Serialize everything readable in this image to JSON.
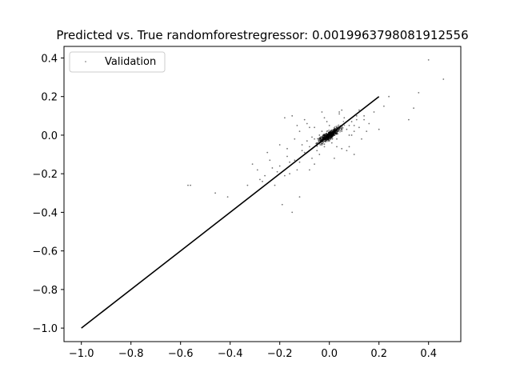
{
  "chart_data": {
    "type": "scatter",
    "title": "Predicted vs. True randomforestregressor: 0.001996379808191​2556",
    "xlabel": "",
    "ylabel": "",
    "xlim": [
      -1.07,
      0.53
    ],
    "ylim": [
      -1.07,
      0.46
    ],
    "xticks": [
      -1.0,
      -0.8,
      -0.6,
      -0.4,
      -0.2,
      0.0,
      0.2,
      0.4
    ],
    "yticks": [
      -1.0,
      -0.8,
      -0.6,
      -0.4,
      -0.2,
      0.0,
      0.2,
      0.4
    ],
    "xtick_labels": [
      "−1.0",
      "−0.8",
      "−0.6",
      "−0.4",
      "−0.2",
      "0.0",
      "0.2",
      "0.4"
    ],
    "ytick_labels": [
      "−1.0",
      "−0.8",
      "−0.6",
      "−0.4",
      "−0.2",
      "0.0",
      "0.2",
      "0.4"
    ],
    "grid": false,
    "legend": {
      "position": "upper-left",
      "entries": [
        "Validation"
      ]
    },
    "series": [
      {
        "name": "Validation",
        "kind": "scatter",
        "color": "#000000",
        "x": [
          -0.57,
          -0.56,
          -0.46,
          -0.41,
          -0.33,
          -0.31,
          -0.29,
          -0.28,
          -0.26,
          -0.24,
          -0.23,
          -0.22,
          -0.2,
          -0.19,
          -0.18,
          -0.17,
          -0.16,
          -0.15,
          -0.14,
          -0.13,
          -0.12,
          -0.11,
          -0.1,
          -0.09,
          -0.08,
          -0.07,
          -0.06,
          -0.05,
          -0.04,
          -0.03,
          -0.02,
          -0.01,
          0.0,
          0.01,
          0.02,
          0.03,
          0.04,
          0.05,
          0.06,
          0.07,
          0.08,
          0.09,
          0.1,
          0.11,
          0.12,
          0.14,
          0.16,
          0.18,
          0.2,
          0.22,
          0.24,
          0.32,
          0.34,
          0.36,
          0.4,
          0.46,
          -0.2,
          -0.15,
          -0.12,
          -0.1,
          -0.08,
          -0.05,
          -0.03,
          0.0,
          0.02,
          0.05,
          0.08,
          0.1,
          -0.18,
          -0.14,
          -0.09,
          -0.06,
          -0.02,
          0.01,
          0.04,
          0.07,
          0.12,
          -0.25,
          -0.21,
          -0.13,
          -0.04,
          0.03,
          0.06,
          0.09,
          0.15,
          -0.11,
          -0.07,
          -0.01,
          0.02,
          0.05,
          0.11,
          0.13,
          -0.16,
          -0.08,
          -0.03,
          0.0,
          0.04,
          0.08,
          0.14,
          -0.27,
          -0.17,
          -0.12,
          -0.06,
          -0.02,
          0.03,
          0.1
        ],
        "y": [
          -0.26,
          -0.26,
          -0.3,
          -0.32,
          -0.26,
          -0.15,
          -0.18,
          -0.23,
          -0.21,
          -0.13,
          -0.17,
          -0.26,
          -0.16,
          -0.36,
          -0.21,
          -0.11,
          -0.2,
          -0.4,
          -0.13,
          -0.18,
          -0.32,
          -0.05,
          -0.09,
          -0.03,
          -0.06,
          -0.12,
          -0.02,
          -0.04,
          0.0,
          -0.05,
          -0.01,
          0.02,
          0.0,
          -0.01,
          0.03,
          0.01,
          0.04,
          0.02,
          0.06,
          0.03,
          0.05,
          0.07,
          0.02,
          0.08,
          0.04,
          0.1,
          0.06,
          0.12,
          0.03,
          0.15,
          0.2,
          0.08,
          0.14,
          0.22,
          0.39,
          0.29,
          -0.05,
          0.1,
          -0.14,
          0.08,
          -0.18,
          -0.08,
          0.12,
          0.05,
          -0.12,
          0.13,
          -0.06,
          -0.1,
          0.09,
          -0.02,
          0.06,
          -0.15,
          0.09,
          -0.04,
          0.11,
          -0.08,
          0.13,
          -0.09,
          -0.19,
          0.05,
          -0.1,
          -0.06,
          0.09,
          0.0,
          0.02,
          -0.08,
          -0.01,
          0.07,
          0.03,
          -0.07,
          0.1,
          -0.02,
          -0.14,
          0.04,
          0.02,
          -0.03,
          0.12,
          0.0,
          0.08,
          -0.24,
          -0.07,
          0.02,
          0.04,
          -0.06,
          -0.02,
          0.05
        ]
      },
      {
        "name": "",
        "kind": "line",
        "color": "#000000",
        "x": [
          -1.0,
          0.2
        ],
        "y": [
          -1.0,
          0.2
        ]
      }
    ]
  }
}
